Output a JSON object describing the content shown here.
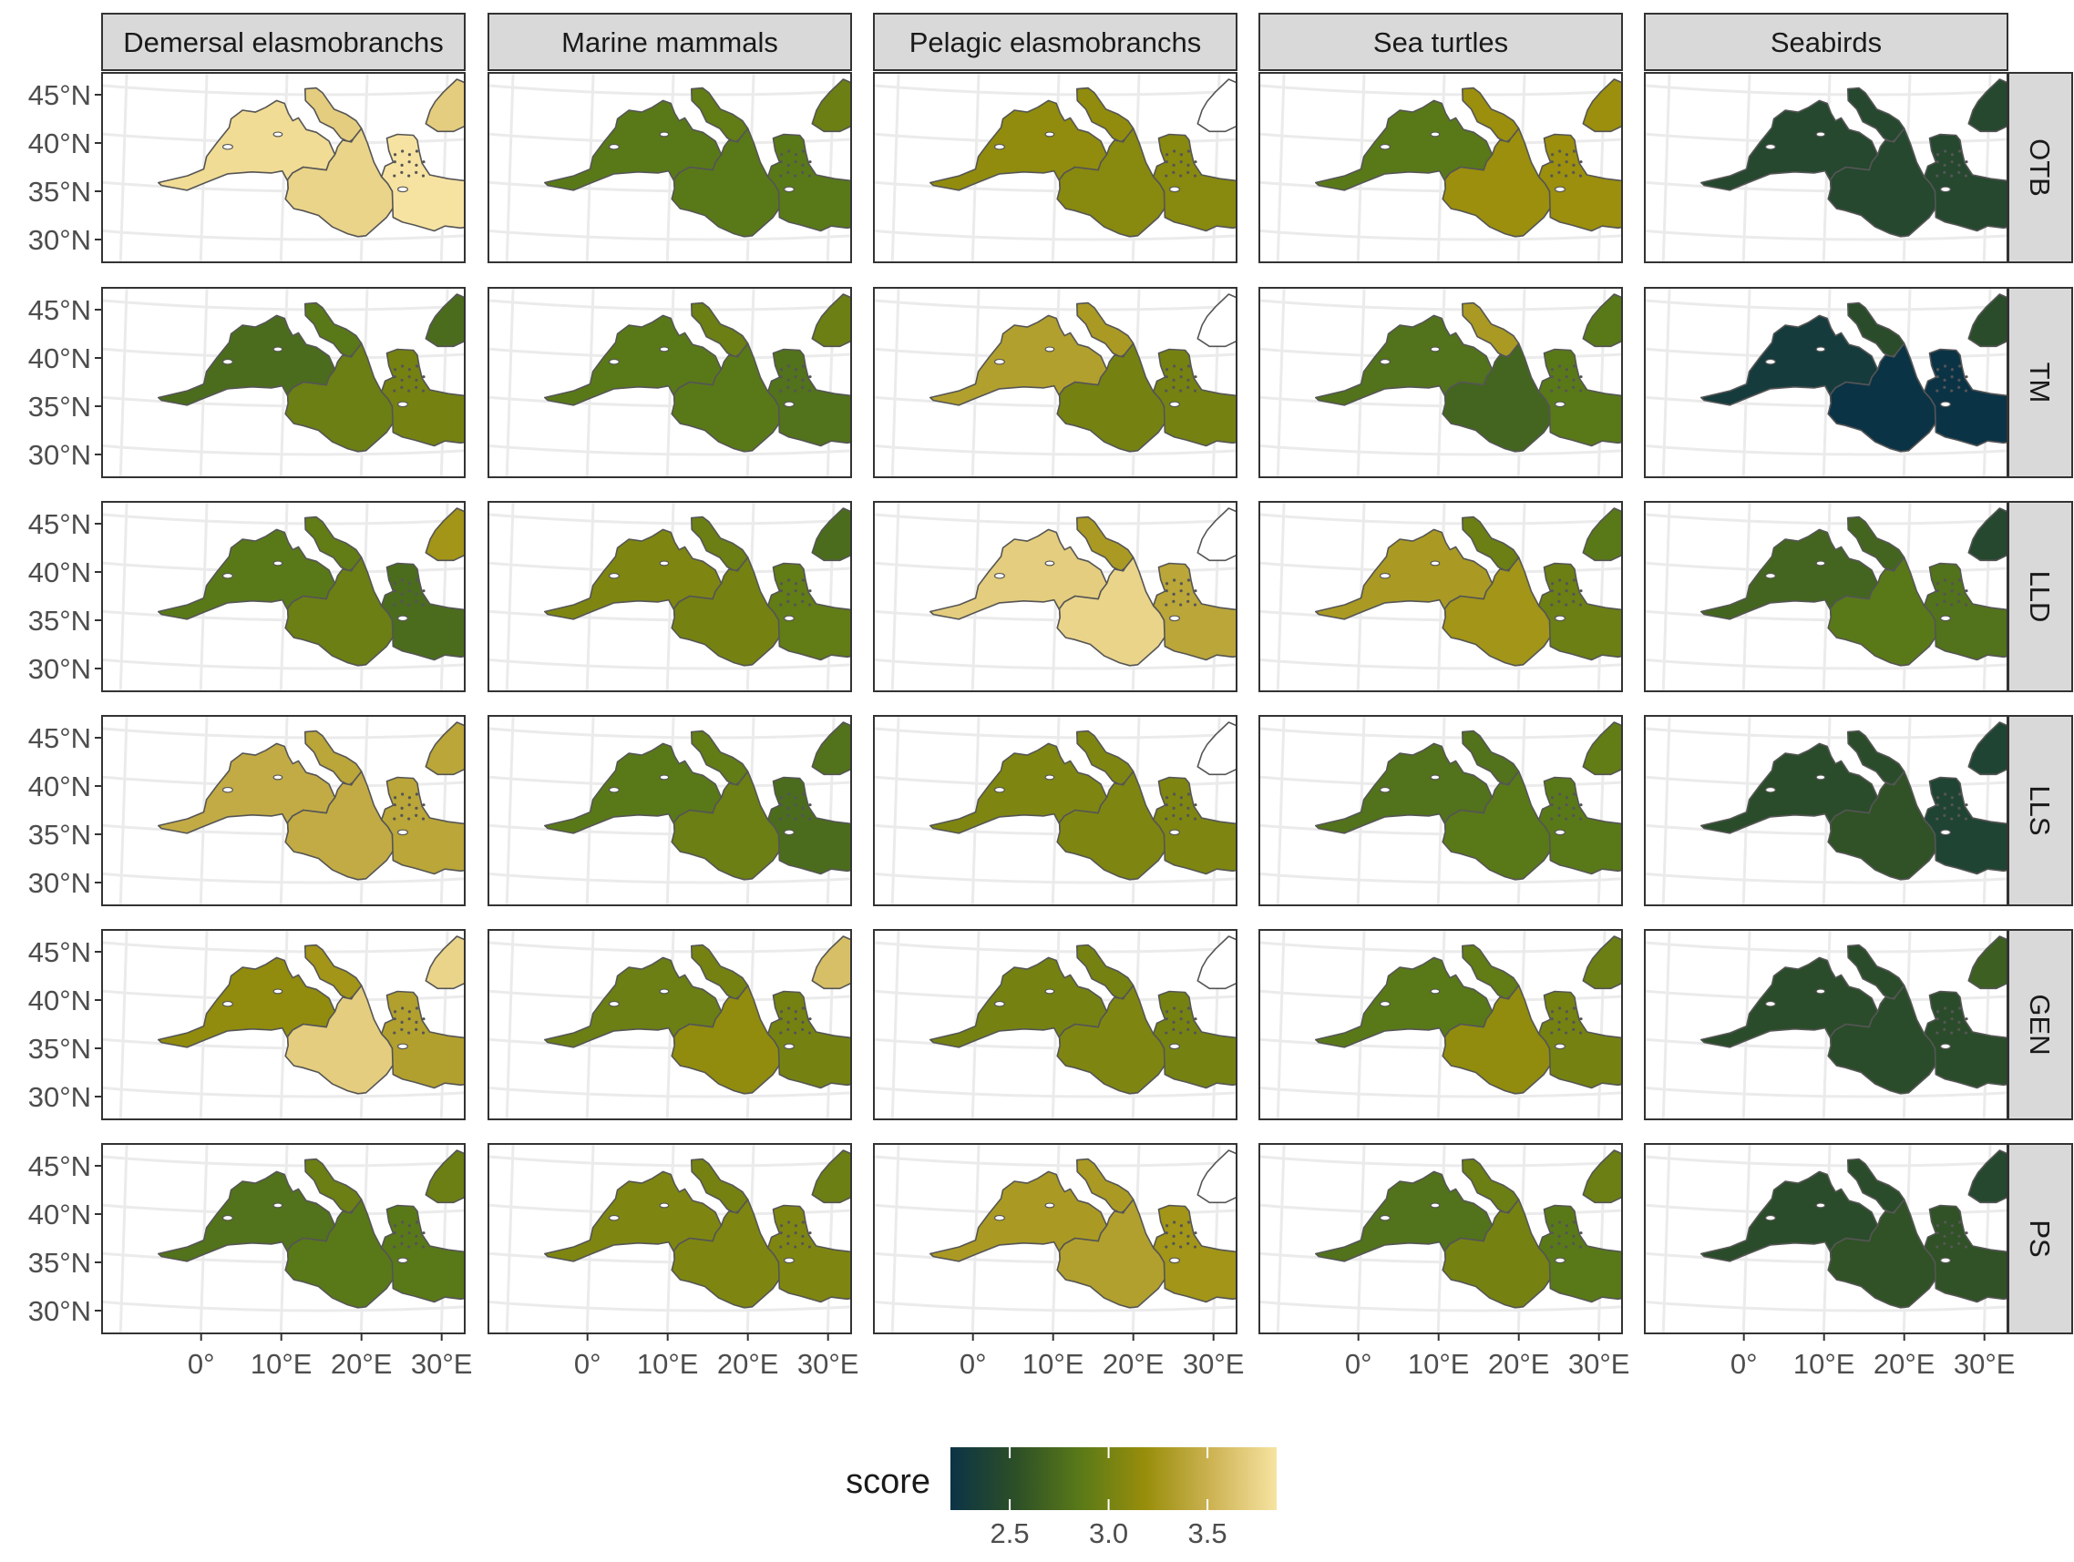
{
  "chart_data": {
    "type": "choropleth-facet-grid",
    "columns": [
      "Demersal elasmobranchs",
      "Marine mammals",
      "Pelagic elasmobranchs",
      "Sea turtles",
      "Seabirds"
    ],
    "rows": [
      "OTB",
      "TM",
      "LLD",
      "LLS",
      "GEN",
      "PS"
    ],
    "regions": [
      "Western Mediterranean",
      "Adriatic Sea",
      "Central Mediterranean",
      "Eastern Mediterranean",
      "Black Sea"
    ],
    "lat_ticks": [
      "45°N",
      "40°N",
      "35°N",
      "30°N"
    ],
    "lon_ticks": [
      "0°",
      "10°E",
      "20°E",
      "30°E"
    ],
    "legend": {
      "title": "score",
      "ticks": [
        "2.5",
        "3.0",
        "3.5"
      ],
      "range": [
        2.2,
        3.85
      ],
      "colors": [
        "#0b3346",
        "#2d4f27",
        "#5a7a18",
        "#998e0b",
        "#cdb354",
        "#f7e3a1"
      ]
    },
    "scores": {
      "OTB": [
        [
          3.8,
          3.7,
          3.75,
          3.85,
          3.7
        ],
        [
          2.85,
          2.9,
          2.85,
          2.85,
          2.95
        ],
        [
          3.15,
          3.15,
          3.1,
          3.1,
          null
        ],
        [
          2.85,
          3.2,
          3.2,
          3.2,
          3.2
        ],
        [
          2.45,
          2.45,
          2.45,
          2.45,
          2.45
        ]
      ],
      "TM": [
        [
          2.75,
          2.85,
          2.95,
          3.0,
          2.75
        ],
        [
          2.85,
          2.95,
          2.85,
          2.8,
          2.95
        ],
        [
          3.35,
          3.3,
          3.0,
          3.0,
          null
        ],
        [
          2.8,
          3.3,
          2.7,
          2.85,
          2.85
        ],
        [
          2.3,
          2.5,
          2.2,
          2.2,
          2.5
        ]
      ],
      "LLD": [
        [
          2.85,
          2.9,
          2.95,
          2.75,
          3.25
        ],
        [
          3.05,
          2.95,
          3.0,
          2.9,
          2.75
        ],
        [
          3.7,
          3.3,
          3.75,
          3.4,
          null
        ],
        [
          3.3,
          2.95,
          3.25,
          2.95,
          2.85
        ],
        [
          2.7,
          2.7,
          2.85,
          2.8,
          2.45
        ]
      ],
      "LLS": [
        [
          3.45,
          3.4,
          3.45,
          3.4,
          3.4
        ],
        [
          2.85,
          2.9,
          2.95,
          2.75,
          2.8
        ],
        [
          3.05,
          3.05,
          3.05,
          3.05,
          null
        ],
        [
          2.8,
          2.8,
          2.85,
          2.85,
          2.9
        ],
        [
          2.5,
          2.5,
          2.55,
          2.4,
          2.4
        ]
      ],
      "GEN": [
        [
          3.15,
          3.25,
          3.7,
          3.35,
          3.75
        ],
        [
          2.95,
          3.0,
          3.15,
          3.0,
          3.6
        ],
        [
          3.0,
          3.0,
          3.05,
          3.0,
          null
        ],
        [
          2.85,
          2.9,
          3.15,
          3.0,
          2.95
        ],
        [
          2.5,
          2.5,
          2.5,
          2.5,
          2.65
        ]
      ],
      "PS": [
        [
          2.8,
          2.95,
          2.85,
          2.85,
          2.95
        ],
        [
          3.05,
          3.0,
          3.05,
          3.05,
          2.95
        ],
        [
          3.3,
          3.3,
          3.35,
          3.25,
          null
        ],
        [
          2.8,
          2.95,
          3.0,
          2.85,
          2.95
        ],
        [
          2.5,
          2.5,
          2.55,
          2.55,
          2.45
        ]
      ]
    }
  }
}
